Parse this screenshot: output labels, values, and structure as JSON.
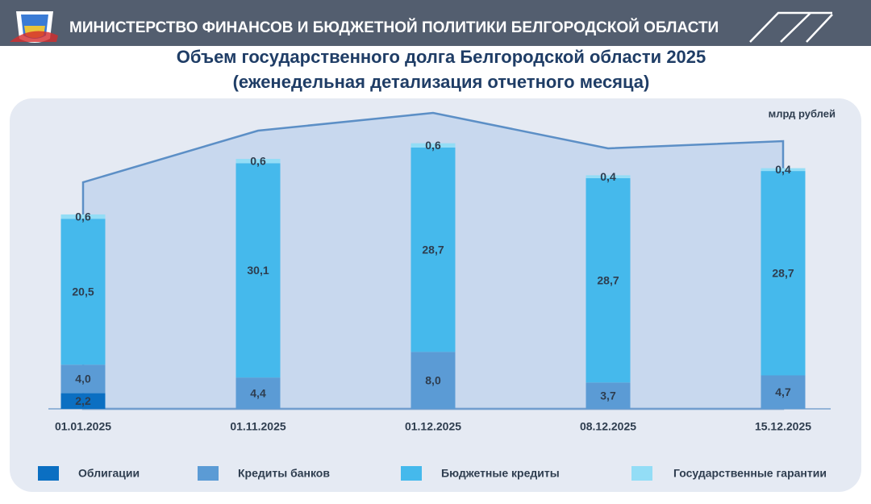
{
  "header": {
    "title": "МИНИСТЕРСТВО ФИНАНСОВ И БЮДЖЕТНОЙ ПОЛИТИКИ БЕЛГОРОДСКОЙ ОБЛАСТИ"
  },
  "chart_data": {
    "type": "stacked-bar",
    "title": "Объем государственного долга Белгородской области 2025",
    "subtitle": "(еженедельная детализация отчетного месяца)",
    "unit": "млрд рублей",
    "categories": [
      "01.01.2025",
      "01.11.2025",
      "01.12.2025",
      "08.12.2025",
      "15.12.2025"
    ],
    "series": [
      {
        "name": "Облигации",
        "color": "#0b6fc2",
        "values": [
          2.2,
          null,
          null,
          null,
          null
        ],
        "value_labels": [
          "2,2",
          null,
          null,
          null,
          null
        ]
      },
      {
        "name": "Кредиты банков",
        "color": "#5b9bd5",
        "values": [
          4.0,
          4.4,
          8.0,
          3.7,
          4.7
        ],
        "value_labels": [
          "4,0",
          "4,4",
          "8,0",
          "3,7",
          "4,7"
        ]
      },
      {
        "name": "Бюджетные кредиты",
        "color": "#45b9ec",
        "values": [
          20.5,
          30.1,
          28.7,
          28.7,
          28.7
        ],
        "value_labels": [
          "20,5",
          "30,1",
          "28,7",
          "28,7",
          "28,7"
        ]
      },
      {
        "name": "Государственные гарантии",
        "color": "#93ddf6",
        "values": [
          0.6,
          0.6,
          0.6,
          0.4,
          0.4
        ],
        "value_labels": [
          "0,6",
          "0,6",
          "0,6",
          "0,4",
          "0,4"
        ]
      }
    ]
  }
}
